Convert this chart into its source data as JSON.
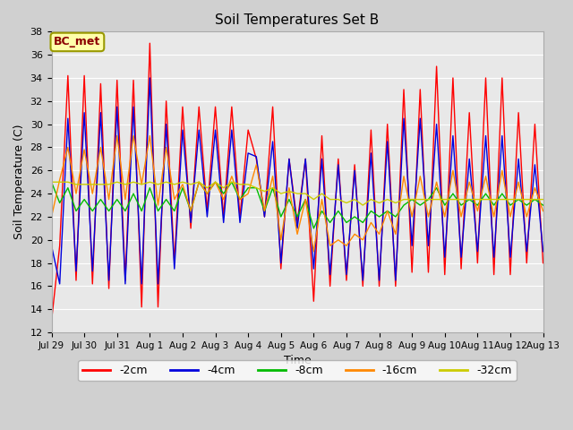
{
  "title": "Soil Temperatures Set B",
  "xlabel": "Time",
  "ylabel": "Soil Temperature (C)",
  "ylim": [
    12,
    38
  ],
  "yticks": [
    12,
    14,
    16,
    18,
    20,
    22,
    24,
    26,
    28,
    30,
    32,
    34,
    36,
    38
  ],
  "annotation_text": "BC_met",
  "fig_facecolor": "#d0d0d0",
  "ax_facecolor": "#e8e8e8",
  "series_colors": [
    "#ff0000",
    "#0000dd",
    "#00bb00",
    "#ff8800",
    "#cccc00"
  ],
  "series_labels": [
    "-2cm",
    "-4cm",
    "-8cm",
    "-16cm",
    "-32cm"
  ],
  "x_tick_labels": [
    "Jul 29",
    "Jul 30",
    "Jul 31",
    "Aug 1",
    "Aug 2",
    "Aug 3",
    "Aug 4",
    "Aug 5",
    "Aug 6",
    "Aug 7",
    "Aug 8",
    "Aug 9",
    "Aug 10",
    "Aug 11",
    "Aug 12",
    "Aug 13"
  ],
  "n_days": 15,
  "series_2cm": [
    13.0,
    19.5,
    34.2,
    16.5,
    34.2,
    16.2,
    33.5,
    15.8,
    33.8,
    16.5,
    33.8,
    14.2,
    37.0,
    14.2,
    32.0,
    18.0,
    31.5,
    21.0,
    31.5,
    22.5,
    31.5,
    22.0,
    31.5,
    22.0,
    29.5,
    27.0,
    22.0,
    31.5,
    17.5,
    27.0,
    21.5,
    27.0,
    14.7,
    29.0,
    16.0,
    27.0,
    16.5,
    26.5,
    16.0,
    29.5,
    16.0,
    30.0,
    16.0,
    33.0,
    17.2,
    33.0,
    17.2,
    35.0,
    17.0,
    34.0,
    17.5,
    31.0,
    18.0,
    34.0,
    17.0,
    34.0,
    17.0,
    31.0,
    18.0,
    30.0,
    18.0
  ],
  "series_4cm": [
    19.5,
    16.2,
    30.5,
    17.3,
    31.0,
    17.3,
    31.0,
    16.5,
    31.5,
    16.2,
    31.5,
    16.2,
    34.0,
    16.2,
    30.0,
    17.5,
    29.5,
    21.5,
    29.5,
    22.0,
    29.5,
    21.5,
    29.5,
    21.5,
    27.5,
    27.2,
    22.0,
    28.5,
    18.0,
    27.0,
    21.0,
    27.0,
    17.5,
    27.0,
    17.0,
    26.5,
    17.0,
    26.0,
    16.5,
    27.5,
    16.5,
    28.5,
    16.5,
    30.5,
    19.5,
    30.5,
    19.5,
    30.0,
    18.5,
    29.0,
    18.5,
    27.0,
    19.0,
    29.0,
    18.5,
    29.0,
    18.5,
    27.0,
    19.0,
    26.5,
    19.0
  ],
  "series_8cm": [
    25.0,
    23.2,
    24.5,
    22.5,
    23.5,
    22.5,
    23.5,
    22.5,
    23.5,
    22.5,
    24.0,
    22.5,
    24.5,
    22.5,
    23.5,
    22.5,
    24.5,
    22.5,
    25.0,
    24.0,
    25.0,
    24.0,
    25.0,
    23.5,
    24.5,
    24.5,
    22.5,
    24.5,
    22.0,
    23.5,
    22.0,
    23.5,
    21.0,
    22.5,
    21.5,
    22.5,
    21.5,
    22.0,
    21.5,
    22.5,
    22.0,
    22.5,
    22.0,
    23.0,
    23.5,
    23.0,
    23.5,
    24.5,
    23.0,
    24.0,
    23.0,
    23.5,
    23.0,
    24.0,
    23.0,
    24.0,
    23.0,
    23.5,
    23.0,
    23.5,
    23.0
  ],
  "series_16cm": [
    22.0,
    25.2,
    28.0,
    24.0,
    27.8,
    24.0,
    28.0,
    23.5,
    29.0,
    23.5,
    29.0,
    24.8,
    29.0,
    23.0,
    28.0,
    23.5,
    24.8,
    22.5,
    25.0,
    24.0,
    25.0,
    23.5,
    25.5,
    23.5,
    24.0,
    26.5,
    22.5,
    25.5,
    20.0,
    24.5,
    20.5,
    23.5,
    19.0,
    23.5,
    19.5,
    20.0,
    19.5,
    20.5,
    20.0,
    21.5,
    20.5,
    22.5,
    20.5,
    25.5,
    22.0,
    25.5,
    22.0,
    25.0,
    22.0,
    26.0,
    22.0,
    25.0,
    22.5,
    25.5,
    22.0,
    26.0,
    22.0,
    25.0,
    22.0,
    24.5,
    22.5
  ],
  "series_32cm": [
    25.0,
    25.0,
    25.0,
    24.8,
    24.8,
    24.8,
    24.8,
    24.8,
    25.0,
    24.8,
    25.0,
    24.8,
    25.0,
    24.8,
    25.0,
    24.8,
    25.0,
    24.8,
    25.0,
    24.5,
    25.0,
    24.5,
    25.0,
    24.8,
    24.8,
    24.5,
    24.2,
    24.5,
    24.0,
    24.2,
    24.0,
    24.0,
    23.5,
    24.0,
    23.5,
    23.5,
    23.2,
    23.5,
    23.0,
    23.5,
    23.2,
    23.5,
    23.2,
    23.5,
    23.5,
    23.5,
    23.5,
    23.5,
    23.5,
    23.5,
    23.5,
    23.5,
    23.5,
    23.5,
    23.5,
    23.5,
    23.5,
    23.5,
    23.5,
    23.5,
    23.5
  ]
}
